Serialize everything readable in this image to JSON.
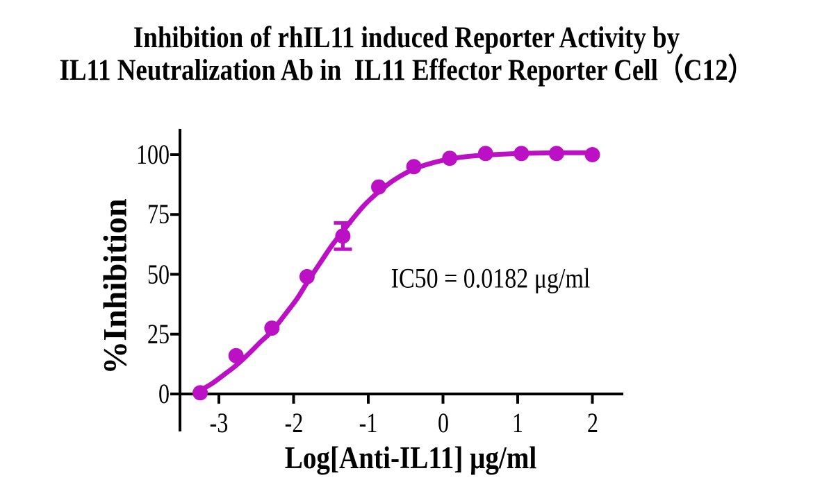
{
  "title": {
    "line1": "Inhibition of rhIL11 induced Reporter Activity by",
    "line2": "IL11 Neutralization Ab in  IL11 Effector Reporter Cell（C12）"
  },
  "colors": {
    "curve": "#BB10C4",
    "axis": "#000000",
    "text": "#000000",
    "background": "#ffffff"
  },
  "chart_data": {
    "type": "scatter",
    "title": "Inhibition of rhIL11 induced Reporter Activity by IL11 Neutralization Ab in  IL11 Effector Reporter Cell（C12）",
    "xlabel": "Log[Anti-IL11] μg/ml",
    "ylabel": "%Inhibition",
    "annotation": "IC50 = 0.0182 μg/ml",
    "ic50_ug_ml": 0.0182,
    "x_ticks": [
      -3,
      -2,
      -1,
      0,
      1,
      2
    ],
    "y_ticks": [
      0,
      25,
      50,
      75,
      100
    ],
    "xlim": [
      -3.5,
      2.4
    ],
    "ylim": [
      0,
      110
    ],
    "grid": false,
    "legend_position": "none",
    "series": [
      {
        "marker": "circle",
        "color": "#BB10C4",
        "points_x": [
          -3.25,
          -2.77,
          -2.29,
          -1.82,
          -1.34,
          -0.86,
          -0.39,
          0.09,
          0.57,
          1.05,
          1.52,
          2.0
        ],
        "points_y": [
          0.5,
          16,
          27.5,
          49,
          66,
          86.5,
          95,
          98.5,
          100.5,
          100.5,
          100.5,
          100
        ],
        "error_bars": [
          {
            "x": -1.34,
            "y": 66,
            "plus": 5.5,
            "minus": 5.5
          }
        ],
        "fit_curve": {
          "x": [
            -3.28,
            -3.1,
            -2.9,
            -2.77,
            -2.6,
            -2.45,
            -2.29,
            -2.1,
            -1.95,
            -1.82,
            -1.65,
            -1.5,
            -1.34,
            -1.2,
            -1.05,
            -0.86,
            -0.65,
            -0.39,
            -0.15,
            0.09,
            0.35,
            0.57,
            0.85,
            1.05,
            1.3,
            1.52,
            1.75,
            2.0
          ],
          "y": [
            1.0,
            4.2,
            8.8,
            11.9,
            16.8,
            21.5,
            26.3,
            33.8,
            40.0,
            46.5,
            54.5,
            61.5,
            68.0,
            73.5,
            79.0,
            84.5,
            89.5,
            94.0,
            96.5,
            98.2,
            99.3,
            99.8,
            100.3,
            100.5,
            100.7,
            100.8,
            100.8,
            100.8
          ]
        }
      }
    ]
  }
}
